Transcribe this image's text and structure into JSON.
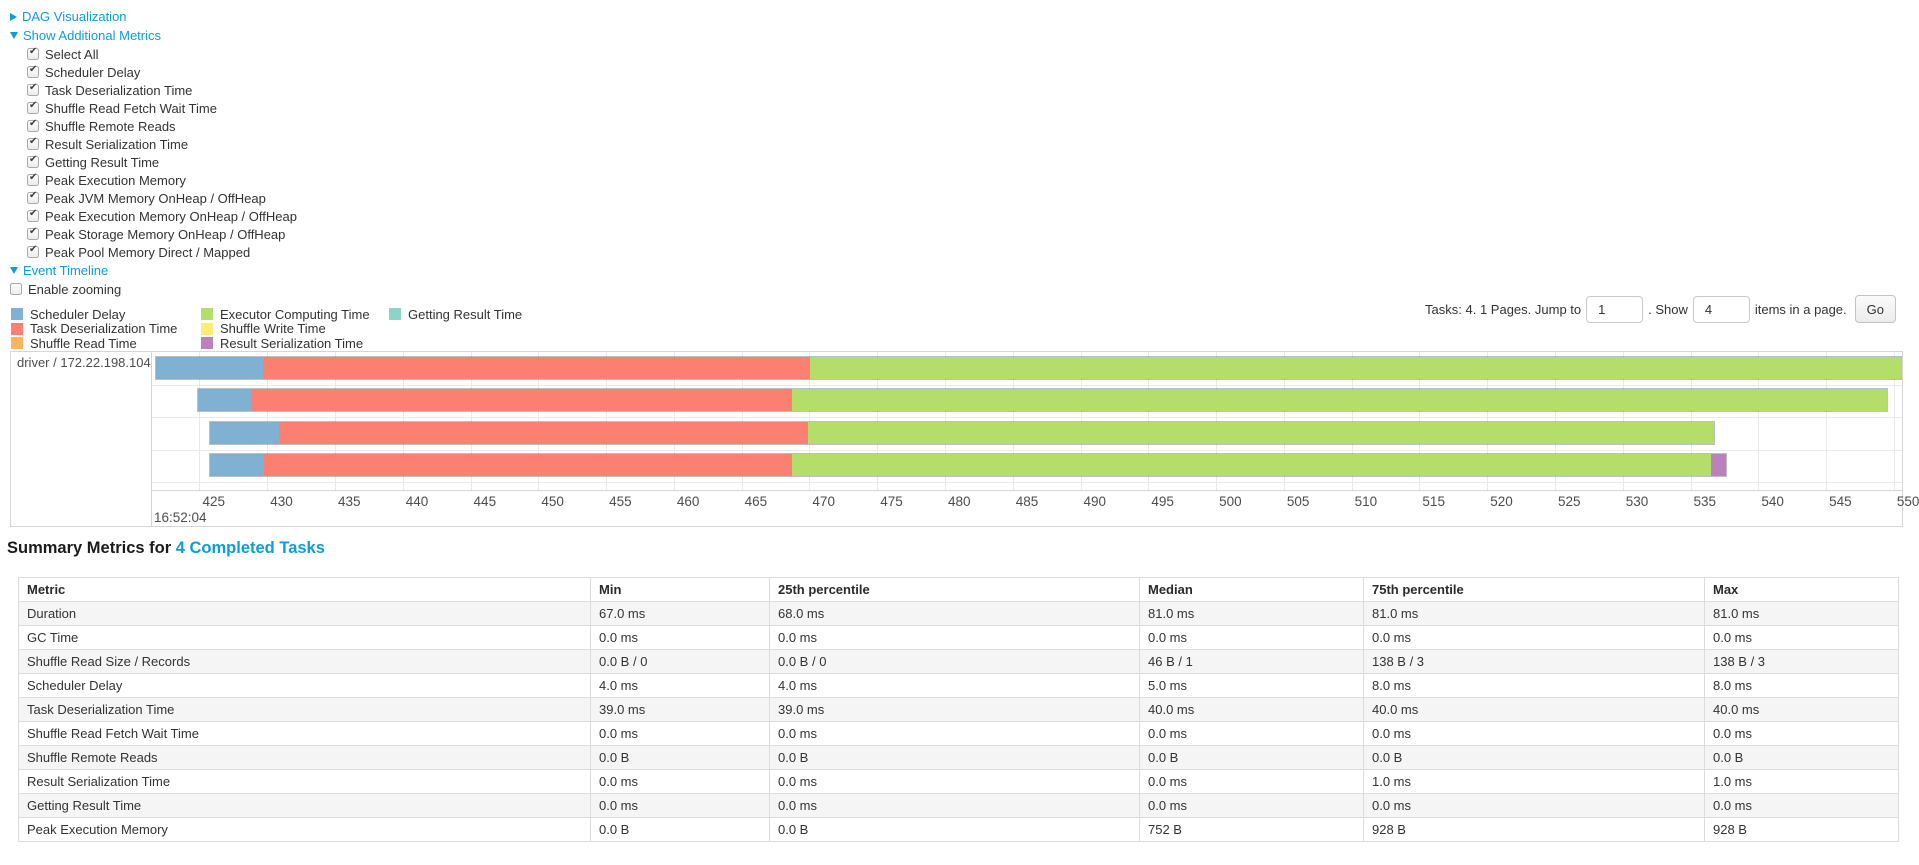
{
  "toggles": {
    "dag": "DAG Visualization",
    "additional_metrics": "Show Additional Metrics",
    "event_timeline": "Event Timeline"
  },
  "additional_metrics": {
    "items": [
      {
        "label": "Select All",
        "checked": true
      },
      {
        "label": "Scheduler Delay",
        "checked": true
      },
      {
        "label": "Task Deserialization Time",
        "checked": true
      },
      {
        "label": "Shuffle Read Fetch Wait Time",
        "checked": true
      },
      {
        "label": "Shuffle Remote Reads",
        "checked": true
      },
      {
        "label": "Result Serialization Time",
        "checked": true
      },
      {
        "label": "Getting Result Time",
        "checked": true
      },
      {
        "label": "Peak Execution Memory",
        "checked": true
      },
      {
        "label": "Peak JVM Memory OnHeap / OffHeap",
        "checked": true
      },
      {
        "label": "Peak Execution Memory OnHeap / OffHeap",
        "checked": true
      },
      {
        "label": "Peak Storage Memory OnHeap / OffHeap",
        "checked": true
      },
      {
        "label": "Peak Pool Memory Direct / Mapped",
        "checked": true
      }
    ]
  },
  "enable_zooming": {
    "label": "Enable zooming",
    "checked": false
  },
  "legend": {
    "columns": [
      [
        {
          "label": "Scheduler Delay",
          "color": "#80B1D3"
        },
        {
          "label": "Task Deserialization Time",
          "color": "#FB8072"
        },
        {
          "label": "Shuffle Read Time",
          "color": "#FDB462"
        }
      ],
      [
        {
          "label": "Executor Computing Time",
          "color": "#B3DE69"
        },
        {
          "label": "Shuffle Write Time",
          "color": "#FFED6F"
        },
        {
          "label": "Result Serialization Time",
          "color": "#BC80BD"
        }
      ],
      [
        {
          "label": "Getting Result Time",
          "color": "#8DD3C7"
        }
      ]
    ]
  },
  "pagination": {
    "prefix": "Tasks: 4. 1 Pages. Jump to",
    "jump_value": "1",
    "middle": ". Show",
    "show_value": "4",
    "suffix": "items in a page.",
    "go": "Go"
  },
  "chart_data": {
    "type": "timeline",
    "group_label": "driver / 172.22.198.104",
    "axis": {
      "domain": [
        421.5,
        550.6
      ],
      "tick_start": 425,
      "tick_end": 550,
      "tick_step": 5,
      "major_label": "16:52:04"
    },
    "colors": {
      "scheduler_delay": "#80B1D3",
      "task_deserialization": "#FB8072",
      "shuffle_read": "#FDB462",
      "executor_computing": "#B3DE69",
      "shuffle_write": "#FFED6F",
      "result_serialization": "#BC80BD",
      "getting_result": "#8DD3C7"
    },
    "tasks": [
      {
        "start": 421.7,
        "segments": [
          [
            "scheduler_delay",
            429.6
          ],
          [
            "task_deserialization",
            470.0
          ],
          [
            "executor_computing",
            550.6
          ]
        ]
      },
      {
        "start": 424.8,
        "segments": [
          [
            "scheduler_delay",
            428.7
          ],
          [
            "task_deserialization",
            468.7
          ],
          [
            "executor_computing",
            549.6
          ]
        ]
      },
      {
        "start": 425.7,
        "segments": [
          [
            "scheduler_delay",
            430.8
          ],
          [
            "task_deserialization",
            469.9
          ],
          [
            "executor_computing",
            536.8
          ]
        ]
      },
      {
        "start": 425.7,
        "segments": [
          [
            "scheduler_delay",
            429.7
          ],
          [
            "task_deserialization",
            468.7
          ],
          [
            "executor_computing",
            536.6
          ],
          [
            "result_serialization",
            537.7
          ]
        ]
      }
    ]
  },
  "summary": {
    "title": "Summary Metrics for",
    "link": "4 Completed Tasks",
    "columns": [
      "Metric",
      "Min",
      "25th percentile",
      "Median",
      "75th percentile",
      "Max"
    ],
    "rows": [
      [
        "Duration",
        "67.0 ms",
        "68.0 ms",
        "81.0 ms",
        "81.0 ms",
        "81.0 ms"
      ],
      [
        "GC Time",
        "0.0 ms",
        "0.0 ms",
        "0.0 ms",
        "0.0 ms",
        "0.0 ms"
      ],
      [
        "Shuffle Read Size / Records",
        "0.0 B / 0",
        "0.0 B / 0",
        "46 B / 1",
        "138 B / 3",
        "138 B / 3"
      ],
      [
        "Scheduler Delay",
        "4.0 ms",
        "4.0 ms",
        "5.0 ms",
        "8.0 ms",
        "8.0 ms"
      ],
      [
        "Task Deserialization Time",
        "39.0 ms",
        "39.0 ms",
        "40.0 ms",
        "40.0 ms",
        "40.0 ms"
      ],
      [
        "Shuffle Read Fetch Wait Time",
        "0.0 ms",
        "0.0 ms",
        "0.0 ms",
        "0.0 ms",
        "0.0 ms"
      ],
      [
        "Shuffle Remote Reads",
        "0.0 B",
        "0.0 B",
        "0.0 B",
        "0.0 B",
        "0.0 B"
      ],
      [
        "Result Serialization Time",
        "0.0 ms",
        "0.0 ms",
        "0.0 ms",
        "1.0 ms",
        "1.0 ms"
      ],
      [
        "Getting Result Time",
        "0.0 ms",
        "0.0 ms",
        "0.0 ms",
        "0.0 ms",
        "0.0 ms"
      ],
      [
        "Peak Execution Memory",
        "0.0 B",
        "0.0 B",
        "752 B",
        "928 B",
        "928 B"
      ]
    ]
  }
}
